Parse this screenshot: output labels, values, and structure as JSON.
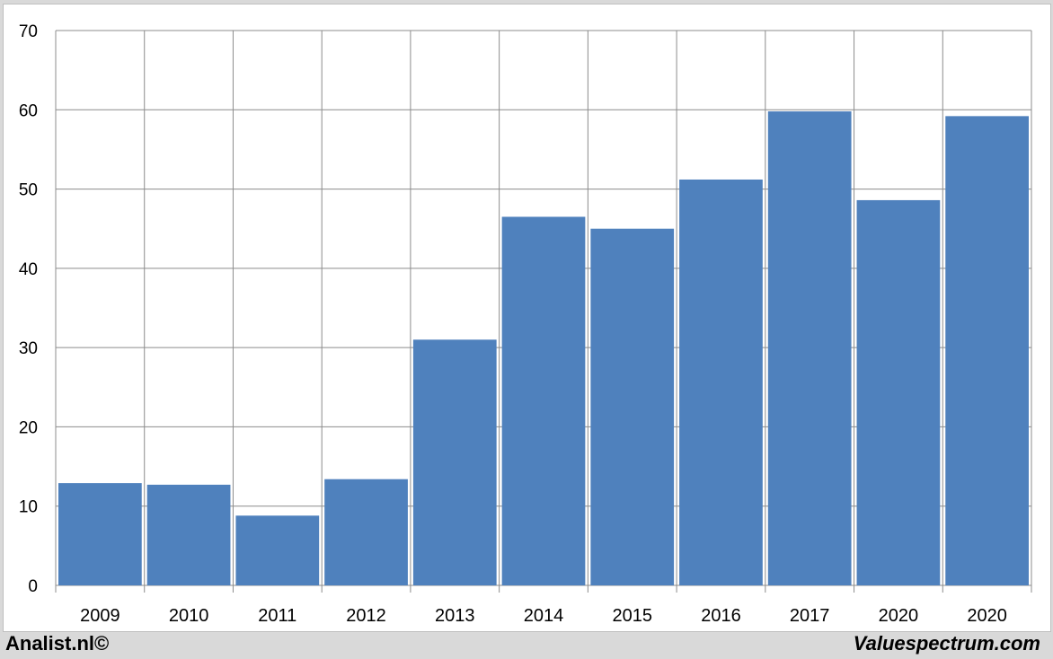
{
  "chart_data": {
    "type": "bar",
    "title": "",
    "xlabel": "",
    "ylabel": "",
    "categories": [
      "2009",
      "2010",
      "2011",
      "2012",
      "2013",
      "2014",
      "2015",
      "2016",
      "2017",
      "2020",
      "2020"
    ],
    "values": [
      12.9,
      12.7,
      8.8,
      13.4,
      31.0,
      46.5,
      45.0,
      51.2,
      59.8,
      48.6,
      59.2
    ],
    "ylim": [
      0,
      70
    ],
    "yticks": [
      0,
      10,
      20,
      30,
      40,
      50,
      60,
      70
    ],
    "grid": true,
    "bar_color": "#4f81bd"
  },
  "footer": {
    "left": "Analist.nl©",
    "right": "Valuespectrum.com"
  }
}
